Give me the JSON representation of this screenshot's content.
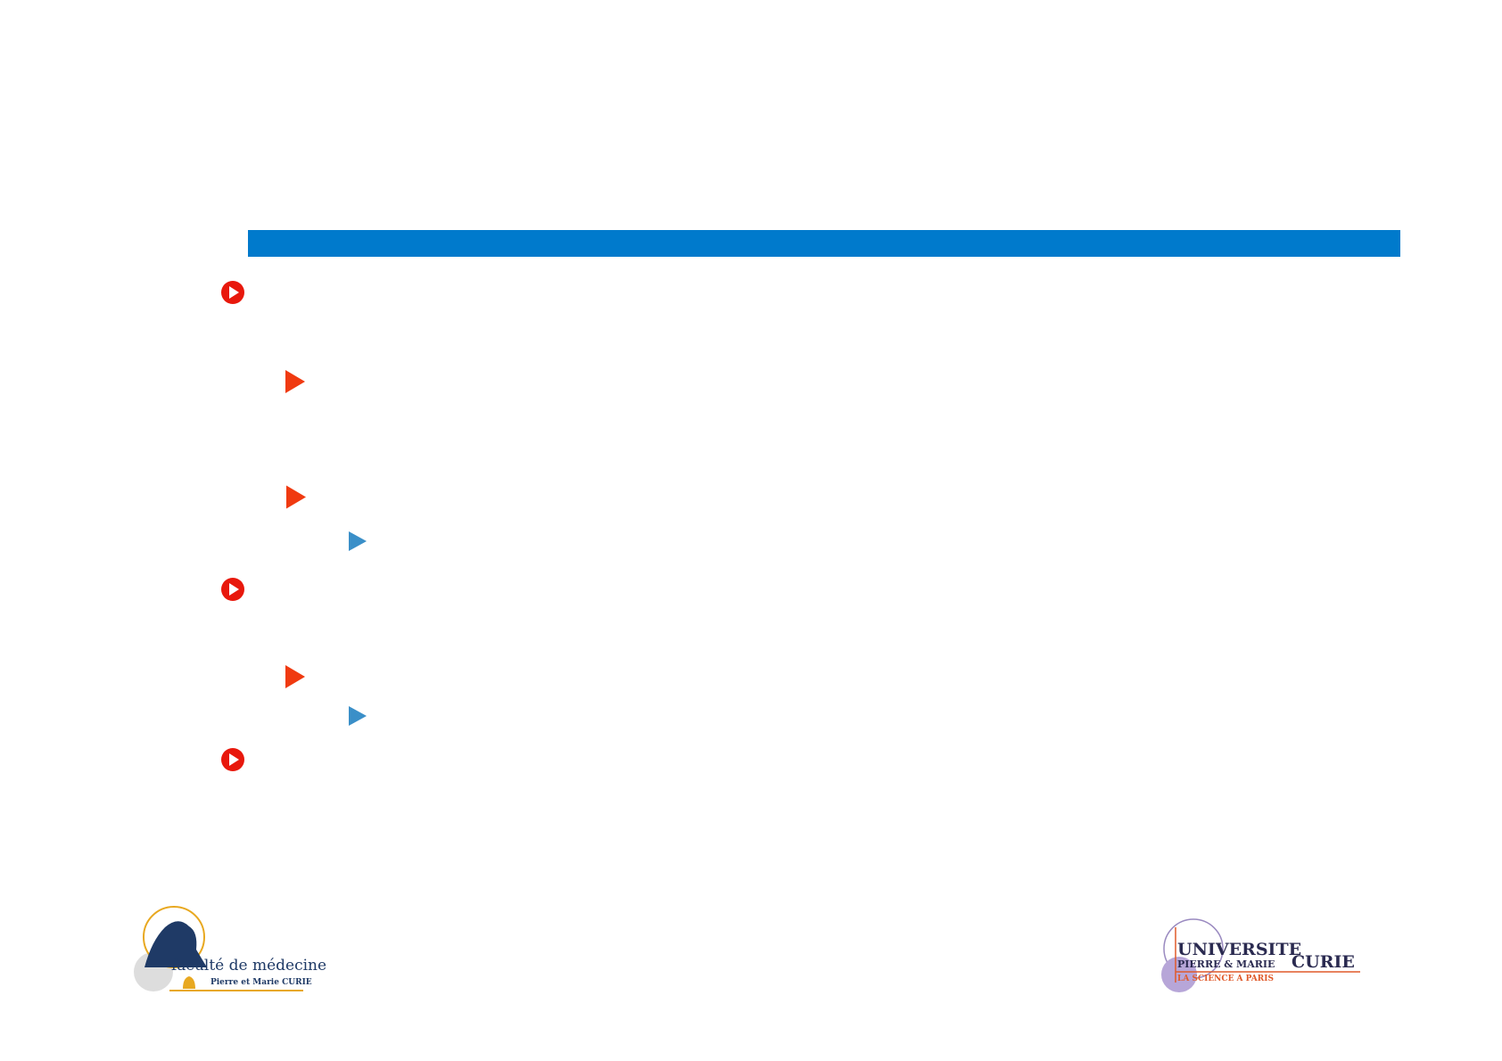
{
  "colors": {
    "title_bar": "#007ACC",
    "level1_bullet": "#E8180C",
    "level2_bullet": "#F03A10",
    "level3_bullet": "#3A8FC8"
  },
  "bullets": [
    {
      "level": 1,
      "icon": "circle-play-icon"
    },
    {
      "level": 2,
      "icon": "triangle-icon"
    },
    {
      "level": 2,
      "icon": "triangle-icon"
    },
    {
      "level": 3,
      "icon": "triangle-icon"
    },
    {
      "level": 1,
      "icon": "circle-play-icon"
    },
    {
      "level": 2,
      "icon": "triangle-icon"
    },
    {
      "level": 3,
      "icon": "triangle-icon"
    },
    {
      "level": 1,
      "icon": "circle-play-icon"
    }
  ],
  "logos": {
    "left": {
      "line1": "faculté de médecine",
      "line2": "Pierre et Marie CURIE"
    },
    "right": {
      "line1": "UNIVERSITE",
      "line2": "PIERRE & MARIE",
      "line3": "CURIE",
      "line4": "LA SCIENCE A PARIS"
    }
  }
}
